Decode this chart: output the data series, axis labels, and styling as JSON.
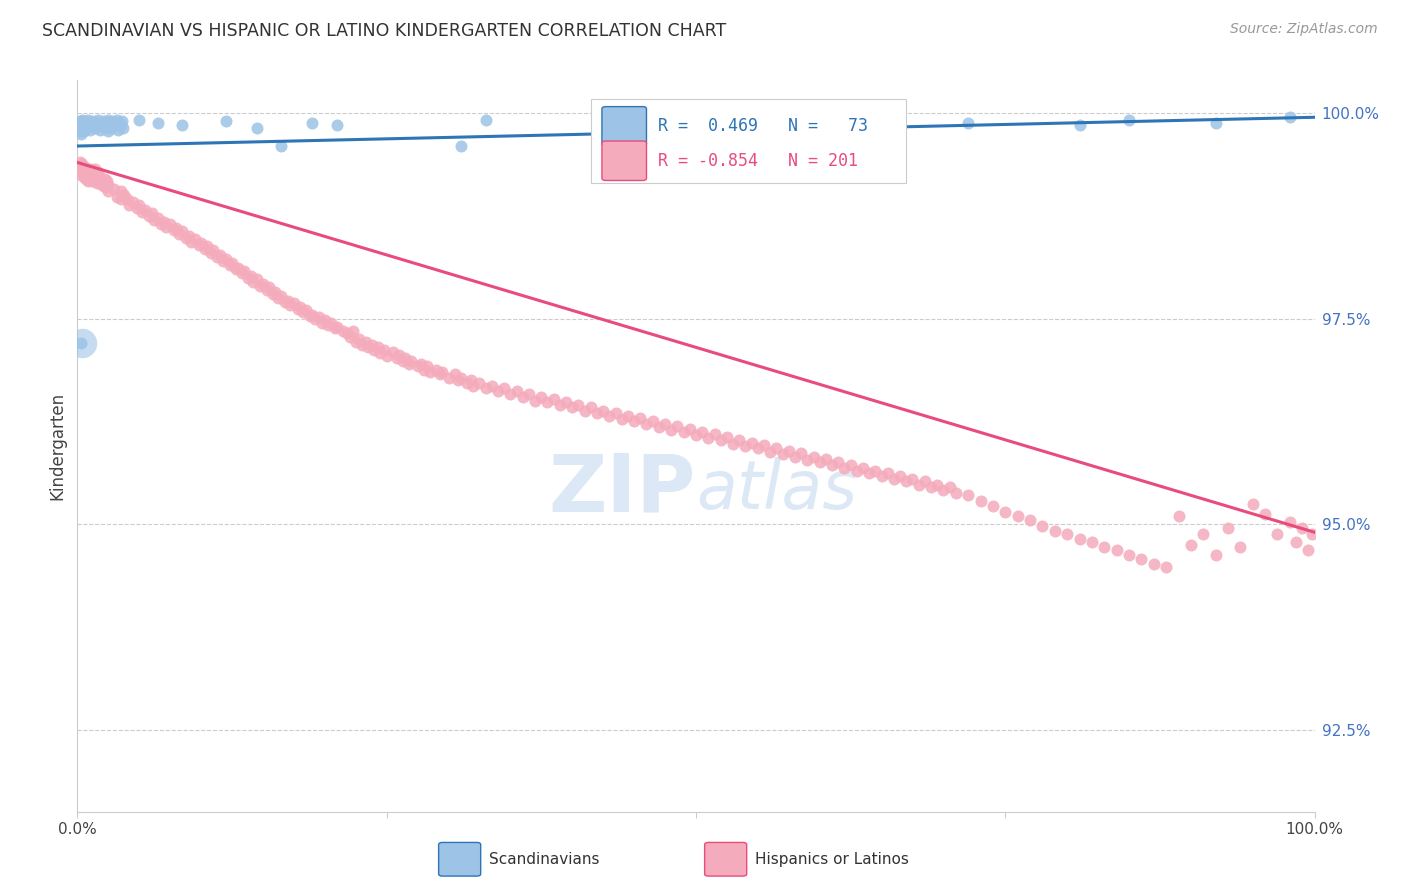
{
  "title": "SCANDINAVIAN VS HISPANIC OR LATINO KINDERGARTEN CORRELATION CHART",
  "source": "Source: ZipAtlas.com",
  "ylabel": "Kindergarten",
  "right_ytick_labels": [
    "100.0%",
    "97.5%",
    "95.0%",
    "92.5%"
  ],
  "right_ytick_values": [
    1.0,
    0.975,
    0.95,
    0.925
  ],
  "legend_scandinavians": "Scandinavians",
  "legend_hispanics": "Hispanics or Latinos",
  "blue_color": "#9DC3E6",
  "pink_color": "#F4ABBB",
  "blue_line_color": "#2E75B6",
  "pink_line_color": "#E84C7D",
  "xmin": 0.0,
  "xmax": 1.0,
  "ymin": 0.915,
  "ymax": 1.004,
  "blue_trend_x": [
    0.0,
    1.0
  ],
  "blue_trend_y": [
    0.996,
    0.9995
  ],
  "pink_trend_x": [
    0.0,
    1.0
  ],
  "pink_trend_y": [
    0.994,
    0.949
  ],
  "blue_points": [
    [
      0.001,
      0.9985
    ],
    [
      0.001,
      0.9978
    ],
    [
      0.002,
      0.999
    ],
    [
      0.002,
      0.9982
    ],
    [
      0.003,
      0.9988
    ],
    [
      0.003,
      0.9975
    ],
    [
      0.004,
      0.9992
    ],
    [
      0.004,
      0.998
    ],
    [
      0.005,
      0.9985
    ],
    [
      0.005,
      0.9978
    ],
    [
      0.006,
      0.999
    ],
    [
      0.006,
      0.9982
    ],
    [
      0.007,
      0.9988
    ],
    [
      0.008,
      0.9985
    ],
    [
      0.009,
      0.9992
    ],
    [
      0.01,
      0.998
    ],
    [
      0.011,
      0.9988
    ],
    [
      0.012,
      0.9985
    ],
    [
      0.013,
      0.999
    ],
    [
      0.014,
      0.9982
    ],
    [
      0.015,
      0.9988
    ],
    [
      0.016,
      0.9985
    ],
    [
      0.017,
      0.9992
    ],
    [
      0.018,
      0.998
    ],
    [
      0.019,
      0.9988
    ],
    [
      0.02,
      0.9985
    ],
    [
      0.021,
      0.999
    ],
    [
      0.022,
      0.9982
    ],
    [
      0.023,
      0.9988
    ],
    [
      0.024,
      0.9985
    ],
    [
      0.025,
      0.9992
    ],
    [
      0.025,
      0.9978
    ],
    [
      0.026,
      0.9988
    ],
    [
      0.027,
      0.9985
    ],
    [
      0.028,
      0.999
    ],
    [
      0.028,
      0.9982
    ],
    [
      0.03,
      0.9988
    ],
    [
      0.031,
      0.9985
    ],
    [
      0.032,
      0.9992
    ],
    [
      0.033,
      0.998
    ],
    [
      0.034,
      0.9988
    ],
    [
      0.035,
      0.9985
    ],
    [
      0.036,
      0.999
    ],
    [
      0.037,
      0.9982
    ],
    [
      0.003,
      0.972
    ],
    [
      0.05,
      0.9992
    ],
    [
      0.065,
      0.9988
    ],
    [
      0.085,
      0.9985
    ],
    [
      0.12,
      0.999
    ],
    [
      0.145,
      0.9982
    ],
    [
      0.165,
      0.996
    ],
    [
      0.19,
      0.9988
    ],
    [
      0.21,
      0.9985
    ],
    [
      0.31,
      0.996
    ],
    [
      0.33,
      0.9992
    ],
    [
      0.44,
      0.9985
    ],
    [
      0.51,
      0.9988
    ],
    [
      0.63,
      0.9992
    ],
    [
      0.72,
      0.9988
    ],
    [
      0.81,
      0.9985
    ],
    [
      0.85,
      0.9992
    ],
    [
      0.92,
      0.9988
    ],
    [
      0.98,
      0.9995
    ],
    [
      0.56,
      0.9985
    ],
    [
      0.6,
      0.999
    ]
  ],
  "pink_points": [
    [
      0.002,
      0.994
    ],
    [
      0.003,
      0.9935
    ],
    [
      0.003,
      0.9925
    ],
    [
      0.004,
      0.9938
    ],
    [
      0.004,
      0.9928
    ],
    [
      0.005,
      0.9932
    ],
    [
      0.005,
      0.9922
    ],
    [
      0.006,
      0.9935
    ],
    [
      0.006,
      0.9925
    ],
    [
      0.007,
      0.993
    ],
    [
      0.007,
      0.992
    ],
    [
      0.008,
      0.9932
    ],
    [
      0.008,
      0.9922
    ],
    [
      0.009,
      0.9928
    ],
    [
      0.009,
      0.9918
    ],
    [
      0.01,
      0.993
    ],
    [
      0.01,
      0.992
    ],
    [
      0.011,
      0.9932
    ],
    [
      0.011,
      0.9922
    ],
    [
      0.012,
      0.9928
    ],
    [
      0.012,
      0.9918
    ],
    [
      0.013,
      0.993
    ],
    [
      0.013,
      0.992
    ],
    [
      0.014,
      0.9932
    ],
    [
      0.015,
      0.9928
    ],
    [
      0.015,
      0.9918
    ],
    [
      0.016,
      0.9925
    ],
    [
      0.016,
      0.9915
    ],
    [
      0.017,
      0.9928
    ],
    [
      0.018,
      0.9922
    ],
    [
      0.019,
      0.9918
    ],
    [
      0.02,
      0.992
    ],
    [
      0.02,
      0.9912
    ],
    [
      0.021,
      0.9915
    ],
    [
      0.022,
      0.992
    ],
    [
      0.022,
      0.991
    ],
    [
      0.023,
      0.9915
    ],
    [
      0.024,
      0.9918
    ],
    [
      0.025,
      0.9912
    ],
    [
      0.025,
      0.9905
    ],
    [
      0.03,
      0.9908
    ],
    [
      0.032,
      0.9898
    ],
    [
      0.035,
      0.9905
    ],
    [
      0.035,
      0.9895
    ],
    [
      0.038,
      0.99
    ],
    [
      0.04,
      0.9895
    ],
    [
      0.042,
      0.9888
    ],
    [
      0.045,
      0.9892
    ],
    [
      0.048,
      0.9885
    ],
    [
      0.05,
      0.9888
    ],
    [
      0.052,
      0.988
    ],
    [
      0.055,
      0.9882
    ],
    [
      0.058,
      0.9875
    ],
    [
      0.06,
      0.9878
    ],
    [
      0.062,
      0.987
    ],
    [
      0.065,
      0.9872
    ],
    [
      0.068,
      0.9865
    ],
    [
      0.07,
      0.9868
    ],
    [
      0.072,
      0.9862
    ],
    [
      0.075,
      0.9865
    ],
    [
      0.078,
      0.9858
    ],
    [
      0.08,
      0.986
    ],
    [
      0.082,
      0.9853
    ],
    [
      0.085,
      0.9856
    ],
    [
      0.088,
      0.9848
    ],
    [
      0.09,
      0.985
    ],
    [
      0.092,
      0.9843
    ],
    [
      0.095,
      0.9847
    ],
    [
      0.098,
      0.984
    ],
    [
      0.1,
      0.9842
    ],
    [
      0.103,
      0.9835
    ],
    [
      0.105,
      0.9838
    ],
    [
      0.108,
      0.983
    ],
    [
      0.11,
      0.9833
    ],
    [
      0.113,
      0.9825
    ],
    [
      0.115,
      0.9828
    ],
    [
      0.118,
      0.982
    ],
    [
      0.12,
      0.9822
    ],
    [
      0.123,
      0.9815
    ],
    [
      0.125,
      0.9818
    ],
    [
      0.128,
      0.981
    ],
    [
      0.13,
      0.9812
    ],
    [
      0.133,
      0.9805
    ],
    [
      0.135,
      0.9808
    ],
    [
      0.138,
      0.98
    ],
    [
      0.14,
      0.9802
    ],
    [
      0.142,
      0.9795
    ],
    [
      0.145,
      0.9798
    ],
    [
      0.148,
      0.979
    ],
    [
      0.15,
      0.9792
    ],
    [
      0.153,
      0.9785
    ],
    [
      0.155,
      0.9788
    ],
    [
      0.158,
      0.978
    ],
    [
      0.16,
      0.9782
    ],
    [
      0.162,
      0.9775
    ],
    [
      0.165,
      0.9778
    ],
    [
      0.168,
      0.977
    ],
    [
      0.17,
      0.9772
    ],
    [
      0.172,
      0.9766
    ],
    [
      0.175,
      0.9769
    ],
    [
      0.178,
      0.9762
    ],
    [
      0.18,
      0.9764
    ],
    [
      0.182,
      0.9758
    ],
    [
      0.185,
      0.976
    ],
    [
      0.188,
      0.9753
    ],
    [
      0.19,
      0.9755
    ],
    [
      0.192,
      0.9749
    ],
    [
      0.195,
      0.9752
    ],
    [
      0.198,
      0.9745
    ],
    [
      0.2,
      0.9748
    ],
    [
      0.203,
      0.9742
    ],
    [
      0.205,
      0.9745
    ],
    [
      0.208,
      0.9738
    ],
    [
      0.21,
      0.974
    ],
    [
      0.215,
      0.9735
    ],
    [
      0.218,
      0.9732
    ],
    [
      0.22,
      0.9728
    ],
    [
      0.223,
      0.9735
    ],
    [
      0.225,
      0.9722
    ],
    [
      0.228,
      0.9725
    ],
    [
      0.23,
      0.9718
    ],
    [
      0.233,
      0.9722
    ],
    [
      0.235,
      0.9715
    ],
    [
      0.238,
      0.9718
    ],
    [
      0.24,
      0.9712
    ],
    [
      0.243,
      0.9715
    ],
    [
      0.245,
      0.9708
    ],
    [
      0.248,
      0.9712
    ],
    [
      0.25,
      0.9705
    ],
    [
      0.255,
      0.9709
    ],
    [
      0.258,
      0.9702
    ],
    [
      0.26,
      0.9706
    ],
    [
      0.263,
      0.9698
    ],
    [
      0.265,
      0.9702
    ],
    [
      0.268,
      0.9695
    ],
    [
      0.27,
      0.9698
    ],
    [
      0.275,
      0.9692
    ],
    [
      0.278,
      0.9695
    ],
    [
      0.28,
      0.9688
    ],
    [
      0.283,
      0.9692
    ],
    [
      0.285,
      0.9685
    ],
    [
      0.29,
      0.9688
    ],
    [
      0.293,
      0.9682
    ],
    [
      0.295,
      0.9685
    ],
    [
      0.3,
      0.9678
    ],
    [
      0.305,
      0.9682
    ],
    [
      0.308,
      0.9675
    ],
    [
      0.31,
      0.9678
    ],
    [
      0.315,
      0.9672
    ],
    [
      0.318,
      0.9675
    ],
    [
      0.32,
      0.9668
    ],
    [
      0.325,
      0.9672
    ],
    [
      0.33,
      0.9665
    ],
    [
      0.335,
      0.9668
    ],
    [
      0.34,
      0.9662
    ],
    [
      0.345,
      0.9665
    ],
    [
      0.35,
      0.9658
    ],
    [
      0.355,
      0.9662
    ],
    [
      0.36,
      0.9655
    ],
    [
      0.365,
      0.9658
    ],
    [
      0.37,
      0.965
    ],
    [
      0.375,
      0.9655
    ],
    [
      0.38,
      0.9648
    ],
    [
      0.385,
      0.9652
    ],
    [
      0.39,
      0.9645
    ],
    [
      0.395,
      0.9648
    ],
    [
      0.4,
      0.9642
    ],
    [
      0.405,
      0.9645
    ],
    [
      0.41,
      0.9638
    ],
    [
      0.415,
      0.9642
    ],
    [
      0.42,
      0.9635
    ],
    [
      0.425,
      0.9638
    ],
    [
      0.43,
      0.9632
    ],
    [
      0.435,
      0.9635
    ],
    [
      0.44,
      0.9628
    ],
    [
      0.445,
      0.9632
    ],
    [
      0.45,
      0.9625
    ],
    [
      0.455,
      0.9629
    ],
    [
      0.46,
      0.9622
    ],
    [
      0.465,
      0.9626
    ],
    [
      0.47,
      0.9618
    ],
    [
      0.475,
      0.9622
    ],
    [
      0.48,
      0.9615
    ],
    [
      0.485,
      0.9619
    ],
    [
      0.49,
      0.9612
    ],
    [
      0.495,
      0.9616
    ],
    [
      0.5,
      0.9608
    ],
    [
      0.505,
      0.9612
    ],
    [
      0.51,
      0.9605
    ],
    [
      0.515,
      0.9609
    ],
    [
      0.52,
      0.9602
    ],
    [
      0.525,
      0.9606
    ],
    [
      0.53,
      0.9598
    ],
    [
      0.535,
      0.9602
    ],
    [
      0.54,
      0.9595
    ],
    [
      0.545,
      0.9599
    ],
    [
      0.55,
      0.9592
    ],
    [
      0.555,
      0.9596
    ],
    [
      0.56,
      0.9588
    ],
    [
      0.565,
      0.9592
    ],
    [
      0.57,
      0.9585
    ],
    [
      0.575,
      0.9589
    ],
    [
      0.58,
      0.9582
    ],
    [
      0.585,
      0.9586
    ],
    [
      0.59,
      0.9578
    ],
    [
      0.595,
      0.9582
    ],
    [
      0.6,
      0.9575
    ],
    [
      0.605,
      0.9579
    ],
    [
      0.61,
      0.9572
    ],
    [
      0.615,
      0.9576
    ],
    [
      0.62,
      0.9568
    ],
    [
      0.625,
      0.9572
    ],
    [
      0.63,
      0.9565
    ],
    [
      0.635,
      0.9568
    ],
    [
      0.64,
      0.9562
    ],
    [
      0.645,
      0.9565
    ],
    [
      0.65,
      0.9558
    ],
    [
      0.655,
      0.9562
    ],
    [
      0.66,
      0.9555
    ],
    [
      0.665,
      0.9558
    ],
    [
      0.67,
      0.9552
    ],
    [
      0.675,
      0.9555
    ],
    [
      0.68,
      0.9548
    ],
    [
      0.685,
      0.9552
    ],
    [
      0.69,
      0.9545
    ],
    [
      0.695,
      0.9548
    ],
    [
      0.7,
      0.9542
    ],
    [
      0.705,
      0.9545
    ],
    [
      0.71,
      0.9538
    ],
    [
      0.72,
      0.9535
    ],
    [
      0.73,
      0.9528
    ],
    [
      0.74,
      0.9522
    ],
    [
      0.75,
      0.9515
    ],
    [
      0.76,
      0.951
    ],
    [
      0.77,
      0.9505
    ],
    [
      0.78,
      0.9498
    ],
    [
      0.79,
      0.9492
    ],
    [
      0.8,
      0.9488
    ],
    [
      0.81,
      0.9482
    ],
    [
      0.82,
      0.9478
    ],
    [
      0.83,
      0.9472
    ],
    [
      0.84,
      0.9468
    ],
    [
      0.85,
      0.9462
    ],
    [
      0.86,
      0.9458
    ],
    [
      0.87,
      0.9452
    ],
    [
      0.88,
      0.9448
    ],
    [
      0.89,
      0.951
    ],
    [
      0.9,
      0.9475
    ],
    [
      0.91,
      0.9488
    ],
    [
      0.92,
      0.9462
    ],
    [
      0.93,
      0.9495
    ],
    [
      0.94,
      0.9472
    ],
    [
      0.95,
      0.9525
    ],
    [
      0.96,
      0.9512
    ],
    [
      0.97,
      0.9488
    ],
    [
      0.98,
      0.9502
    ],
    [
      0.985,
      0.9478
    ],
    [
      0.99,
      0.9495
    ],
    [
      0.995,
      0.9468
    ],
    [
      0.998,
      0.9488
    ]
  ],
  "large_blue_outlier": [
    0.004,
    0.972
  ],
  "large_blue_outlier_size": 450
}
